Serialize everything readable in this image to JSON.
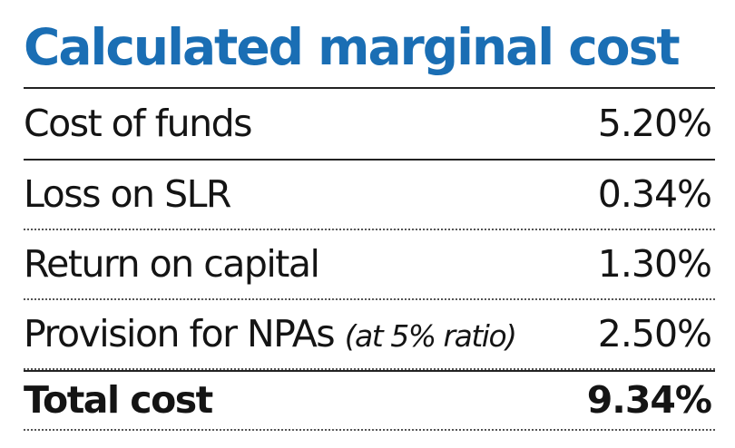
{
  "chart_data": {
    "type": "table",
    "title": "Calculated marginal cost",
    "columns": [
      "",
      ""
    ],
    "rows": [
      {
        "label": "Cost of funds",
        "note": "",
        "value": "5.20%"
      },
      {
        "label": "Loss on SLR",
        "note": "",
        "value": "0.34%"
      },
      {
        "label": "Return on capital",
        "note": "",
        "value": "1.30%"
      },
      {
        "label": "Provision for NPAs",
        "note": "(at 5% ratio)",
        "value": "2.50%"
      }
    ],
    "total": {
      "label": "Total cost",
      "value": "9.34%"
    }
  },
  "colors": {
    "title": "#1a6eb4",
    "text": "#141414",
    "rule": "#222222"
  }
}
